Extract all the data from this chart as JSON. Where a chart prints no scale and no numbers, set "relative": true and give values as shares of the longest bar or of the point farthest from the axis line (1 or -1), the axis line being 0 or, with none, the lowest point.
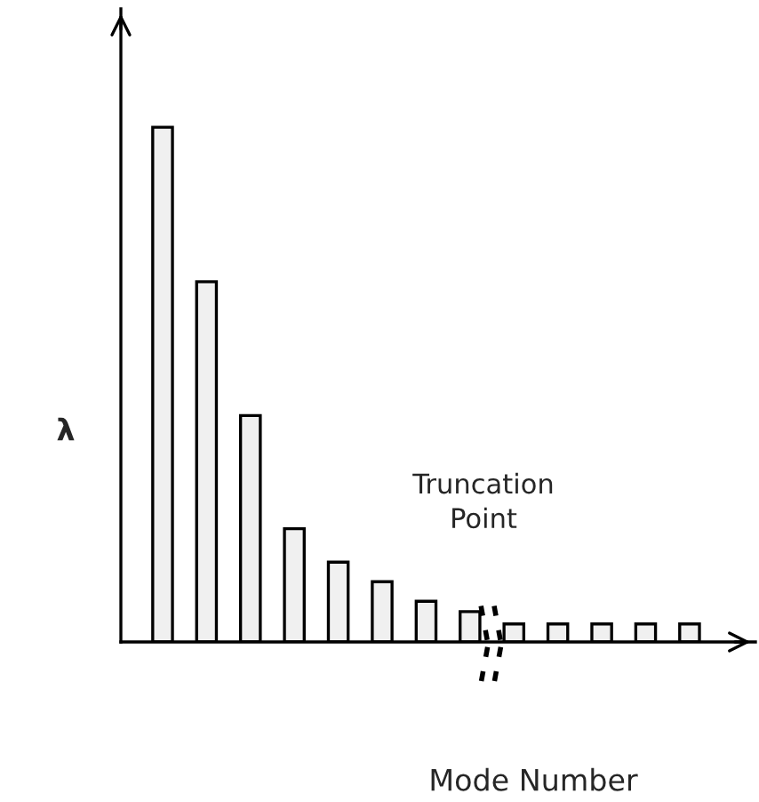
{
  "chart_data": {
    "type": "bar",
    "relative": true,
    "ylabel": "λ",
    "xlabel": "Mode Number",
    "annotations": [
      "Truncation Point"
    ],
    "categories": [
      null,
      null,
      null,
      null,
      null,
      null,
      null,
      null,
      null,
      null,
      null,
      null,
      null
    ],
    "values": [
      1,
      0.7,
      0.44,
      0.22,
      0.155,
      0.117,
      0.079,
      0.059,
      0.035,
      0.035,
      0.035,
      0.035,
      0.035
    ],
    "color": "#f0f0f0"
  }
}
